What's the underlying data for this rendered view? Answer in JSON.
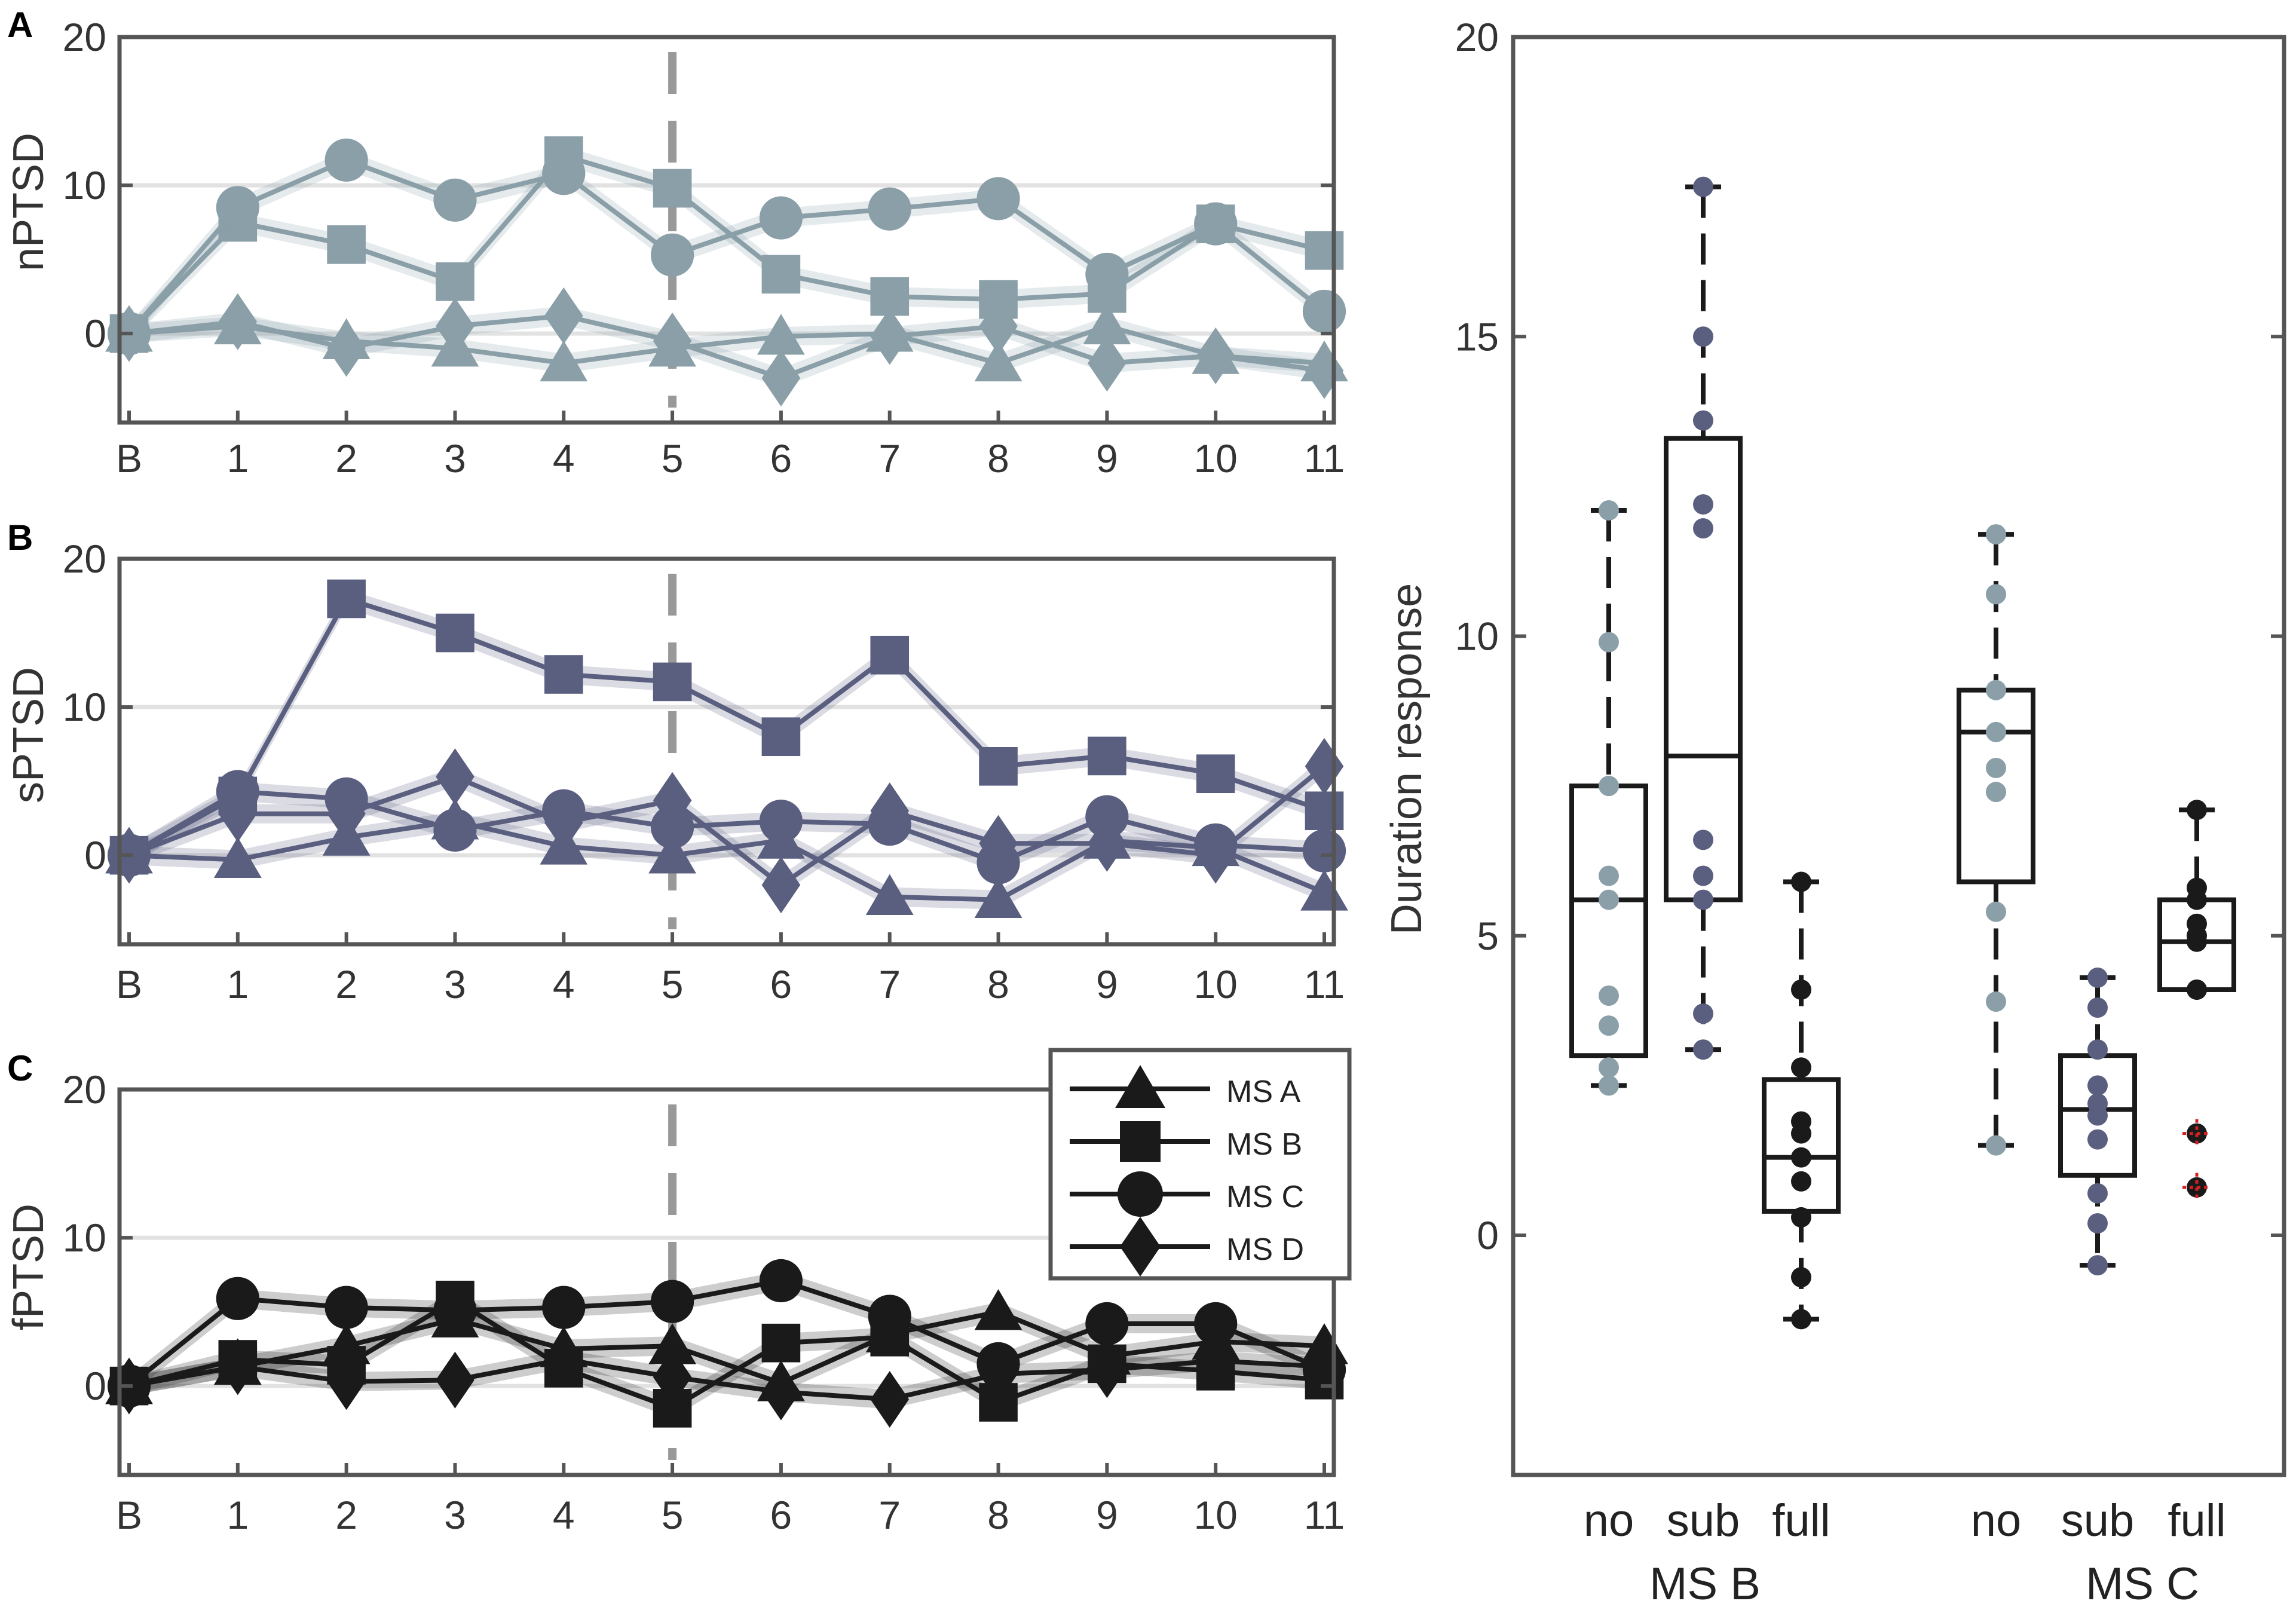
{
  "chart_data": [
    {
      "id": "A",
      "type": "line",
      "panel_label": "A",
      "ylabel": "nPTSD",
      "x_categories": [
        "B",
        "1",
        "2",
        "3",
        "4",
        "5",
        "6",
        "7",
        "8",
        "9",
        "10",
        "11"
      ],
      "ylim": [
        -6,
        20
      ],
      "yticks": [
        0,
        10,
        20
      ],
      "grid": true,
      "reference_line_x": "5",
      "color": "#8a9fa7",
      "series": [
        {
          "name": "MS A",
          "marker": "triangle",
          "values": [
            0,
            0.5,
            -0.5,
            -1,
            -2,
            -1,
            -0.2,
            0,
            -2,
            0.5,
            -1.5,
            -2
          ]
        },
        {
          "name": "MS B",
          "marker": "square",
          "values": [
            0,
            7.5,
            6,
            3.5,
            12,
            9.8,
            4,
            2.5,
            2.3,
            2.7,
            7.4,
            5.6
          ]
        },
        {
          "name": "MS C",
          "marker": "circle",
          "values": [
            0,
            8.5,
            11.7,
            9,
            10.8,
            5.3,
            7.8,
            8.4,
            9.1,
            4,
            7.4,
            1.5
          ]
        },
        {
          "name": "MS D",
          "marker": "diamond",
          "values": [
            0,
            0.8,
            -1,
            0.5,
            1.2,
            -0.5,
            -3,
            -0.2,
            0.5,
            -2,
            -1.5,
            -2.5
          ]
        }
      ]
    },
    {
      "id": "B",
      "type": "line",
      "panel_label": "B",
      "ylabel": "sPTSD",
      "x_categories": [
        "B",
        "1",
        "2",
        "3",
        "4",
        "5",
        "6",
        "7",
        "8",
        "9",
        "10",
        "11"
      ],
      "ylim": [
        -6,
        20
      ],
      "yticks": [
        0,
        10,
        20
      ],
      "grid": true,
      "reference_line_x": "5",
      "color": "#5a5f80",
      "series": [
        {
          "name": "MS A",
          "marker": "triangle",
          "values": [
            0,
            -0.3,
            1.2,
            2.3,
            0.6,
            0,
            1,
            -2.8,
            -3,
            1,
            0.5,
            -2.5
          ]
        },
        {
          "name": "MS B",
          "marker": "square",
          "values": [
            0,
            4,
            17.3,
            15,
            12.2,
            11.7,
            8,
            13.5,
            6,
            6.7,
            5.5,
            3
          ]
        },
        {
          "name": "MS C",
          "marker": "circle",
          "values": [
            0,
            4.3,
            3.8,
            1.7,
            3,
            1.9,
            2.3,
            2.1,
            -0.5,
            2.6,
            0.7,
            0.3
          ]
        },
        {
          "name": "MS D",
          "marker": "diamond",
          "values": [
            0,
            2.8,
            2.8,
            5.3,
            2.2,
            3.7,
            -2,
            3,
            0.8,
            0.8,
            0,
            6
          ]
        }
      ]
    },
    {
      "id": "C",
      "type": "line",
      "panel_label": "C",
      "ylabel": "fPTSD",
      "x_categories": [
        "B",
        "1",
        "2",
        "3",
        "4",
        "5",
        "6",
        "7",
        "8",
        "9",
        "10",
        "11"
      ],
      "ylim": [
        -6,
        20
      ],
      "yticks": [
        0,
        10,
        20
      ],
      "grid": true,
      "reference_line_x": "5",
      "color": "#1a1a1a",
      "legend": {
        "position": "top-right",
        "entries": [
          "MS A",
          "MS B",
          "MS C",
          "MS D"
        ]
      },
      "series": [
        {
          "name": "MS A",
          "marker": "triangle",
          "values": [
            0,
            1.3,
            2.7,
            4.5,
            2.5,
            2.7,
            0.2,
            3.5,
            5,
            2,
            3,
            2.7
          ]
        },
        {
          "name": "MS B",
          "marker": "square",
          "values": [
            0,
            1.8,
            1.4,
            5.8,
            1.2,
            -1.5,
            2.9,
            3.3,
            -1.1,
            1.5,
            1,
            0.4
          ]
        },
        {
          "name": "MS C",
          "marker": "circle",
          "values": [
            0,
            5.9,
            5.3,
            5.1,
            5.3,
            5.7,
            7.1,
            4.7,
            1.5,
            4.2,
            4.2,
            1.1
          ]
        },
        {
          "name": "MS D",
          "marker": "diamond",
          "values": [
            0,
            1.3,
            0.3,
            0.4,
            1.8,
            0.6,
            -0.4,
            -0.9,
            0.8,
            1.1,
            1.7,
            1.3
          ]
        }
      ]
    },
    {
      "id": "D",
      "type": "box",
      "ylabel": "Duration response",
      "ylim": [
        -4,
        20
      ],
      "yticks": [
        0,
        5,
        10,
        15,
        20
      ],
      "groups": [
        {
          "label": "MS B",
          "boxes": [
            {
              "label": "no",
              "color": "#8a9fa7",
              "q1": 3,
              "median": 5.6,
              "q3": 7.5,
              "whisker_low": 2.5,
              "whisker_high": 12.1,
              "outliers": [],
              "points": [
                12.1,
                9.9,
                7.5,
                6,
                5.6,
                4,
                3.5,
                2.8,
                2.5
              ]
            },
            {
              "label": "sub",
              "color": "#5a5f80",
              "q1": 5.6,
              "median": 8,
              "q3": 13.3,
              "whisker_low": 3.1,
              "whisker_high": 17.5,
              "outliers": [],
              "points": [
                17.5,
                15,
                13.6,
                12.2,
                11.8,
                6.6,
                6,
                5.6,
                3.7,
                3.1
              ]
            },
            {
              "label": "full",
              "color": "#1a1a1a",
              "q1": 0.4,
              "median": 1.3,
              "q3": 2.6,
              "whisker_low": -1.4,
              "whisker_high": 5.9,
              "outliers": [],
              "points": [
                5.9,
                4.1,
                2.8,
                1.9,
                1.7,
                1.3,
                0.9,
                0.3,
                -0.7,
                -1.4
              ]
            }
          ]
        },
        {
          "label": "MS C",
          "boxes": [
            {
              "label": "no",
              "color": "#8a9fa7",
              "q1": 5.9,
              "median": 8.4,
              "q3": 9.1,
              "whisker_low": 1.5,
              "whisker_high": 11.7,
              "outliers": [],
              "points": [
                11.7,
                10.7,
                9.1,
                8.4,
                7.8,
                7.4,
                5.4,
                3.9,
                1.5
              ]
            },
            {
              "label": "sub",
              "color": "#5a5f80",
              "q1": 1,
              "median": 2.1,
              "q3": 3,
              "whisker_low": -0.5,
              "whisker_high": 4.3,
              "outliers": [],
              "points": [
                4.3,
                3.8,
                3.1,
                2.5,
                2.2,
                2,
                1.6,
                0.7,
                0.2,
                -0.5
              ]
            },
            {
              "label": "full",
              "color": "#1a1a1a",
              "q1": 4.1,
              "median": 4.9,
              "q3": 5.6,
              "whisker_low": 4.1,
              "whisker_high": 7.1,
              "outliers": [
                1.7,
                0.8
              ],
              "points": [
                7.1,
                5.8,
                5.6,
                5.2,
                5,
                4.9,
                4.1,
                4.1
              ]
            }
          ]
        }
      ]
    }
  ]
}
